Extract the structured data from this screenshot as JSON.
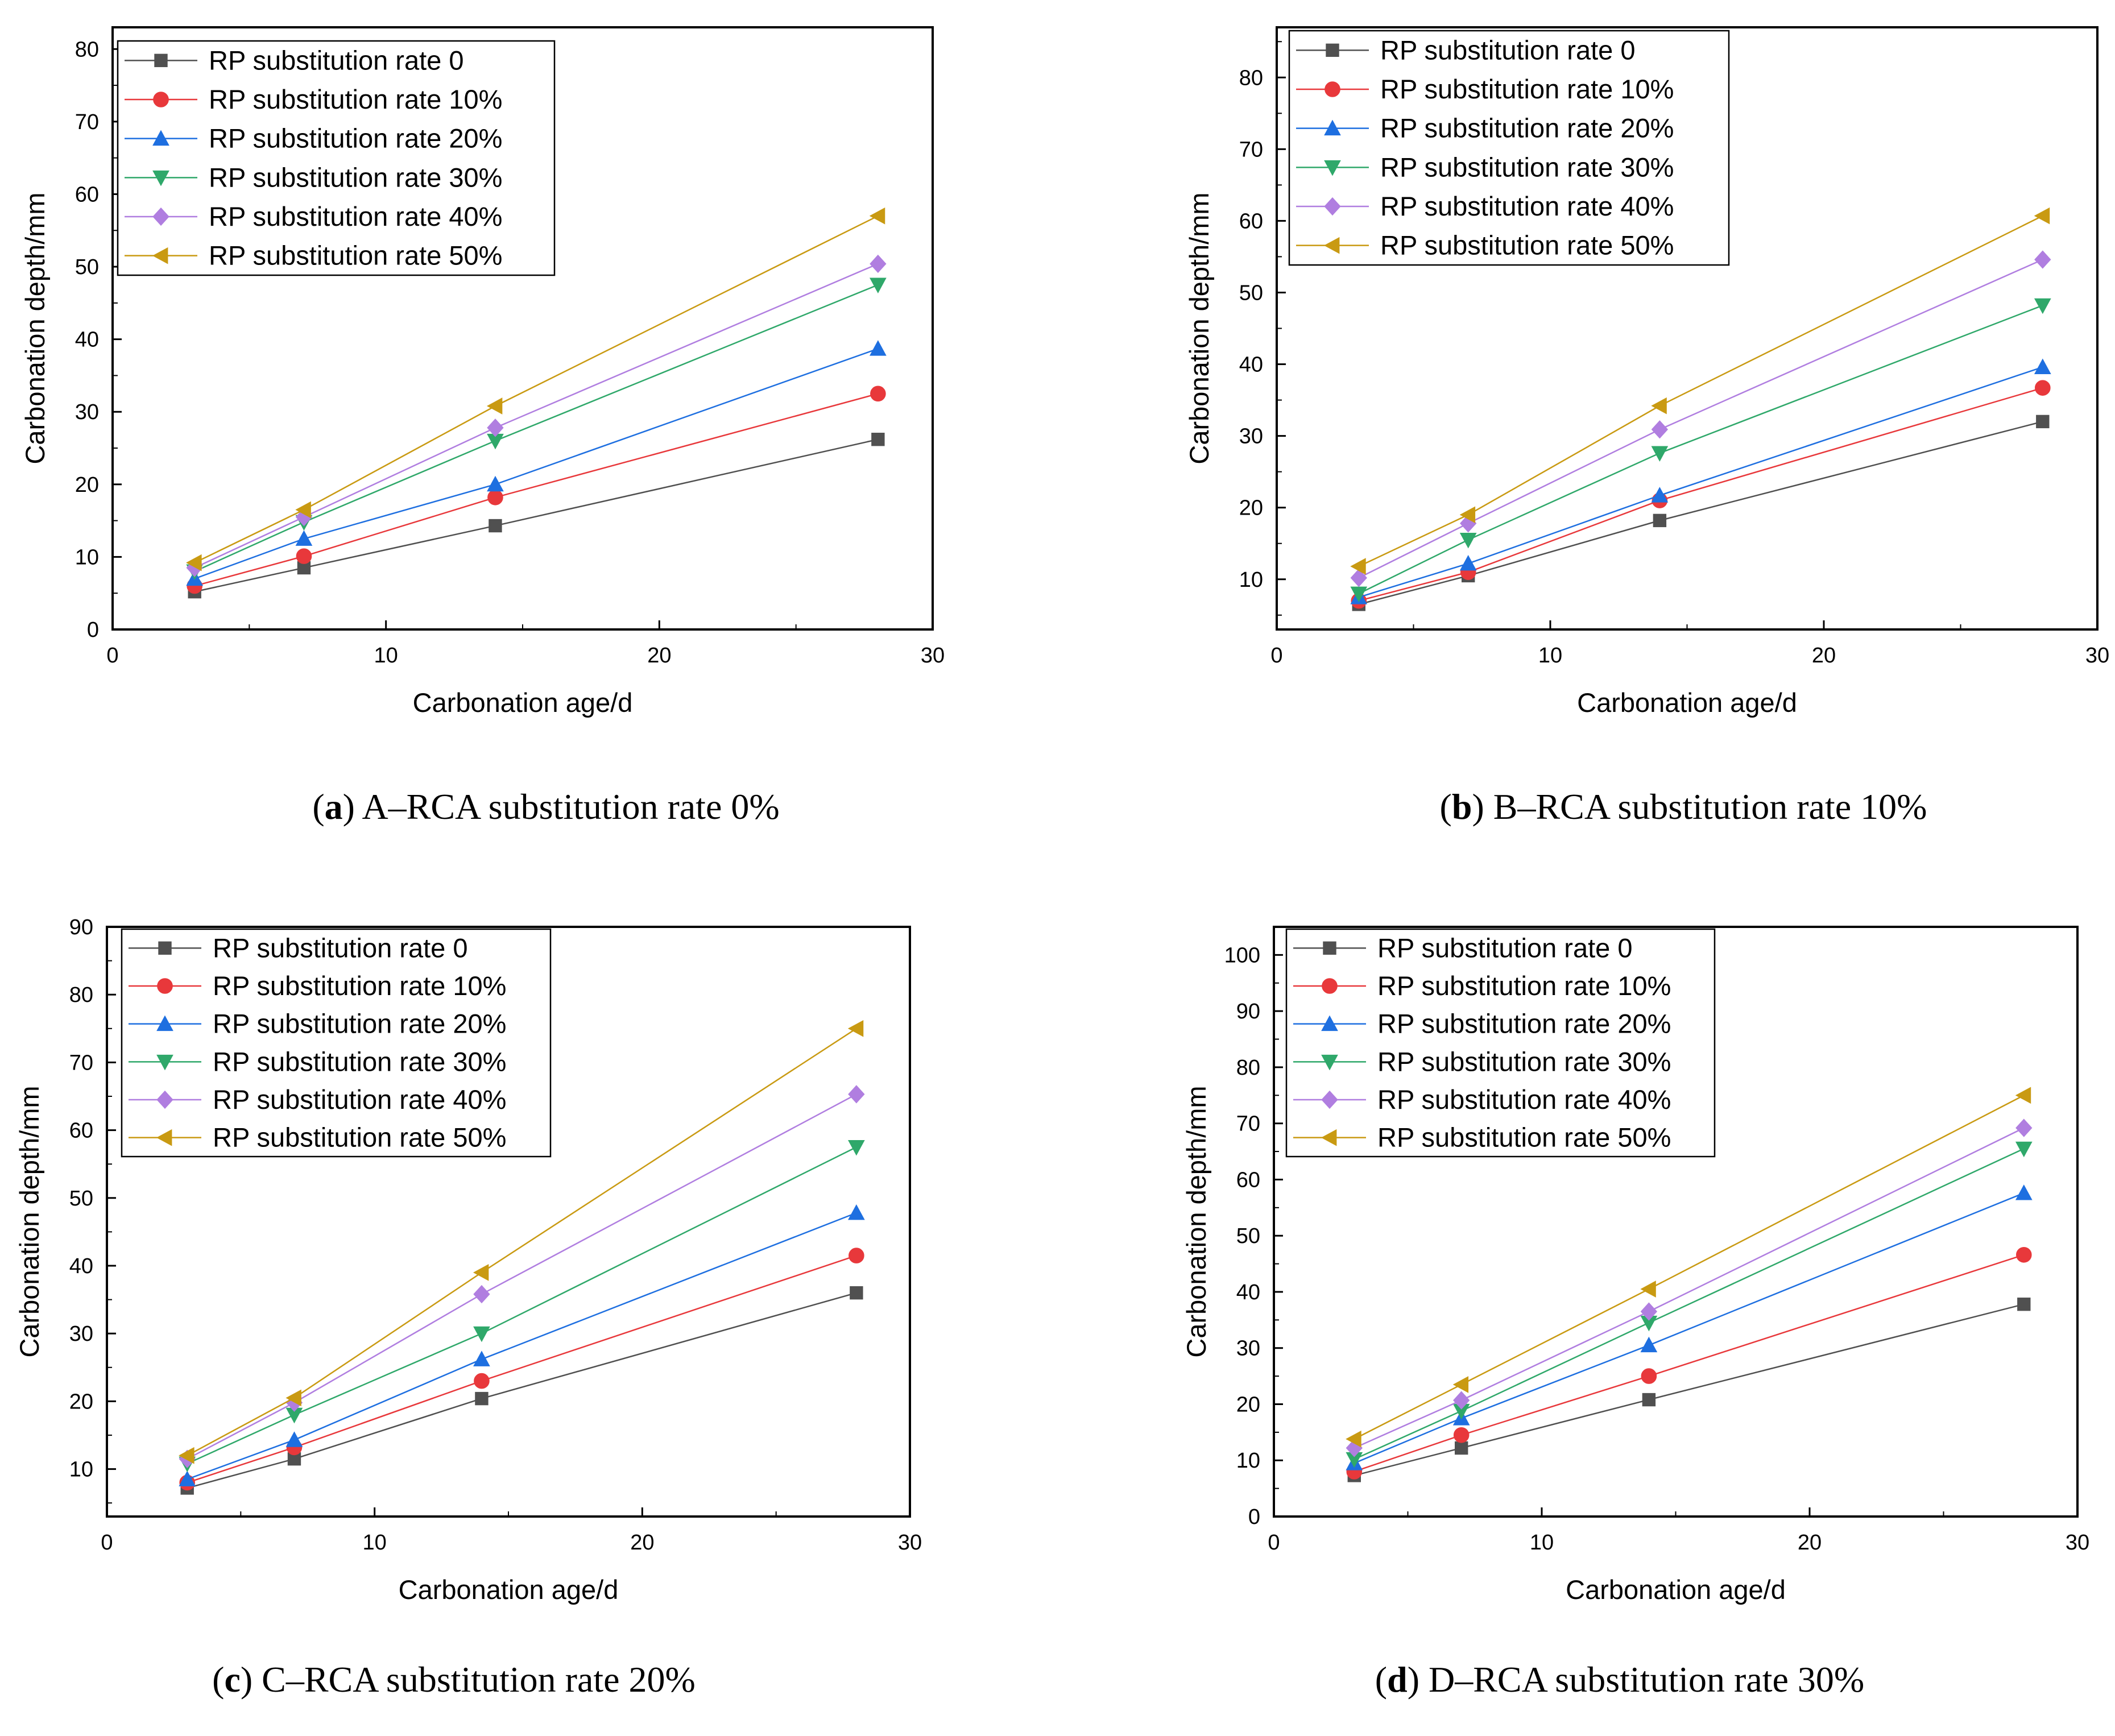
{
  "colors": {
    "series": [
      "#505050",
      "#e8383b",
      "#1e6fe0",
      "#2fa86a",
      "#b07ee0",
      "#c99a12"
    ],
    "axis": "#000000"
  },
  "markers": [
    "square",
    "circle",
    "triangle-up",
    "triangle-down",
    "diamond",
    "triangle-left"
  ],
  "chart_data": [
    {
      "type": "line",
      "xlabel": "Carbonation age/d",
      "ylabel": "Carbonation depth/mm",
      "xlim": [
        0,
        30
      ],
      "ylim": [
        0,
        83
      ],
      "xticks": [
        0,
        10,
        20,
        30
      ],
      "yticks": [
        0,
        10,
        20,
        30,
        40,
        50,
        60,
        70,
        80
      ],
      "legend_position": "top-left",
      "caption": {
        "letter": "a",
        "text": "A–RCA substitution rate 0%"
      },
      "x": [
        3,
        7,
        14,
        28
      ],
      "series": [
        {
          "name": "RP substitution rate 0",
          "values": [
            5.2,
            8.5,
            14.3,
            26.2
          ]
        },
        {
          "name": "RP substitution rate 10%",
          "values": [
            6.0,
            10.1,
            18.2,
            32.5
          ]
        },
        {
          "name": "RP substitution rate 20%",
          "values": [
            7.0,
            12.5,
            20.0,
            38.7
          ]
        },
        {
          "name": "RP substitution rate 30%",
          "values": [
            8.0,
            14.8,
            26.0,
            47.5
          ]
        },
        {
          "name": "RP substitution rate 40%",
          "values": [
            8.5,
            15.5,
            27.8,
            50.4
          ]
        },
        {
          "name": "RP substitution rate 50%",
          "values": [
            9.2,
            16.5,
            30.8,
            57.0
          ]
        }
      ]
    },
    {
      "type": "line",
      "xlabel": "Carbonation age/d",
      "ylabel": "Carbonation depth/mm",
      "xlim": [
        0,
        30
      ],
      "ylim": [
        3,
        87
      ],
      "xticks": [
        0,
        10,
        20,
        30
      ],
      "yticks": [
        10,
        20,
        30,
        40,
        50,
        60,
        70,
        80
      ],
      "legend_position": "top-left",
      "caption": {
        "letter": "b",
        "text": "B–RCA substitution rate 10%"
      },
      "x": [
        3,
        7,
        14,
        28
      ],
      "series": [
        {
          "name": "RP substitution rate 0",
          "values": [
            6.5,
            10.5,
            18.2,
            32.0
          ]
        },
        {
          "name": "RP substitution rate 10%",
          "values": [
            7.0,
            11.0,
            21.0,
            36.7
          ]
        },
        {
          "name": "RP substitution rate 20%",
          "values": [
            7.5,
            12.2,
            21.7,
            39.6
          ]
        },
        {
          "name": "RP substitution rate 30%",
          "values": [
            8.0,
            15.5,
            27.6,
            48.2
          ]
        },
        {
          "name": "RP substitution rate 40%",
          "values": [
            10.2,
            17.8,
            30.9,
            54.6
          ]
        },
        {
          "name": "RP substitution rate 50%",
          "values": [
            11.8,
            19.0,
            34.2,
            60.7
          ]
        }
      ]
    },
    {
      "type": "line",
      "xlabel": "Carbonation age/d",
      "ylabel": "Carbonation depth/mm",
      "xlim": [
        0,
        30
      ],
      "ylim": [
        3,
        90
      ],
      "xticks": [
        0,
        10,
        20,
        30
      ],
      "yticks": [
        10,
        20,
        30,
        40,
        50,
        60,
        70,
        80,
        90
      ],
      "legend_position": "top-left",
      "caption": {
        "letter": "c",
        "text": "C–RCA substitution rate 20%"
      },
      "x": [
        3,
        7,
        14,
        28
      ],
      "series": [
        {
          "name": "RP substitution rate 0",
          "values": [
            7.2,
            11.5,
            20.4,
            36.0
          ]
        },
        {
          "name": "RP substitution rate 10%",
          "values": [
            8.0,
            13.2,
            23.0,
            41.5
          ]
        },
        {
          "name": "RP substitution rate 20%",
          "values": [
            8.5,
            14.3,
            26.2,
            47.8
          ]
        },
        {
          "name": "RP substitution rate 30%",
          "values": [
            10.8,
            18.0,
            30.0,
            57.5
          ]
        },
        {
          "name": "RP substitution rate 40%",
          "values": [
            11.5,
            19.8,
            35.8,
            65.3
          ]
        },
        {
          "name": "RP substitution rate 50%",
          "values": [
            12.0,
            20.5,
            39.0,
            75.0
          ]
        }
      ]
    },
    {
      "type": "line",
      "xlabel": "Carbonation age/d",
      "ylabel": "Carbonation depth/mm",
      "xlim": [
        0,
        30
      ],
      "ylim": [
        0,
        105
      ],
      "xticks": [
        0,
        10,
        20,
        30
      ],
      "yticks": [
        0,
        10,
        20,
        30,
        40,
        50,
        60,
        70,
        80,
        90,
        100
      ],
      "legend_position": "top-left",
      "caption": {
        "letter": "d",
        "text": "D–RCA substitution rate 30%"
      },
      "x": [
        3,
        7,
        14,
        28
      ],
      "series": [
        {
          "name": "RP substitution rate 0",
          "values": [
            7.3,
            12.2,
            20.8,
            37.8
          ]
        },
        {
          "name": "RP substitution rate 10%",
          "values": [
            8.0,
            14.5,
            25.0,
            46.6
          ]
        },
        {
          "name": "RP substitution rate 20%",
          "values": [
            9.5,
            17.5,
            30.5,
            57.6
          ]
        },
        {
          "name": "RP substitution rate 30%",
          "values": [
            10.2,
            18.8,
            34.5,
            65.5
          ]
        },
        {
          "name": "RP substitution rate 40%",
          "values": [
            12.2,
            20.7,
            36.5,
            69.2
          ]
        },
        {
          "name": "RP substitution rate 50%",
          "values": [
            13.8,
            23.5,
            40.5,
            75.0
          ]
        }
      ]
    }
  ]
}
